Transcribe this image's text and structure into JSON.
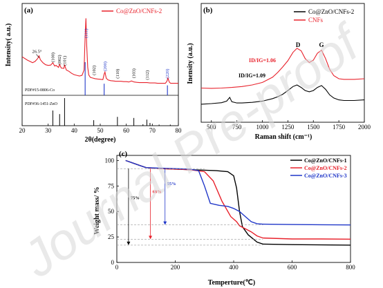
{
  "watermark": "Journal Pre-proof",
  "chart_data": [
    {
      "id": "a",
      "panel_label": "(a)",
      "type": "line",
      "xlabel": "2θ(degree)",
      "ylabel": "Intensity( a.u.)",
      "xlim": [
        20,
        80
      ],
      "xticks": [
        20,
        30,
        40,
        50,
        60,
        70,
        80
      ],
      "legend": {
        "position": "top-right"
      },
      "series": [
        {
          "name": "Co@ZnO/CNFs-2",
          "color": "#e8202a",
          "x": [
            20,
            22,
            24,
            25,
            26,
            26.5,
            27,
            28,
            29,
            30,
            31,
            31.8,
            32.5,
            33,
            34,
            34.4,
            35,
            36,
            36.3,
            37,
            38,
            39,
            40,
            41,
            42,
            43,
            43.8,
            44.2,
            44.5,
            44.8,
            45.2,
            45.6,
            46.2,
            47,
            48,
            49,
            50,
            51,
            51.5,
            51.8,
            52.3,
            53,
            54,
            55,
            56,
            57,
            58,
            59,
            60,
            61,
            62,
            63,
            64,
            65,
            66,
            67,
            68,
            69,
            70,
            71,
            72,
            73,
            74,
            75,
            75.6,
            76,
            76.5,
            77,
            78,
            79,
            80
          ],
          "y": [
            1.1,
            1.0,
            0.92,
            0.96,
            1.05,
            1.13,
            1.01,
            0.92,
            0.86,
            0.84,
            0.85,
            0.92,
            0.82,
            0.84,
            0.78,
            0.87,
            0.76,
            0.75,
            0.85,
            0.7,
            0.66,
            0.6,
            0.56,
            0.54,
            0.52,
            0.54,
            0.7,
            1.75,
            2.26,
            1.45,
            0.78,
            0.55,
            0.48,
            0.46,
            0.44,
            0.43,
            0.42,
            0.41,
            0.58,
            0.64,
            0.45,
            0.4,
            0.38,
            0.37,
            0.36,
            0.36,
            0.36,
            0.35,
            0.35,
            0.34,
            0.37,
            0.34,
            0.33,
            0.32,
            0.32,
            0.32,
            0.32,
            0.31,
            0.31,
            0.31,
            0.3,
            0.3,
            0.3,
            0.3,
            0.36,
            0.46,
            0.34,
            0.3,
            0.3,
            0.3,
            0.3
          ]
        }
      ],
      "annotations": [
        {
          "text": "26.5°",
          "x": 26.5,
          "color": "#000000"
        },
        {
          "text": "(100)",
          "x": 31.8,
          "color": "#000000"
        },
        {
          "text": "(002)",
          "x": 34.4,
          "color": "#000000"
        },
        {
          "text": "(101)",
          "x": 36.3,
          "color": "#000000"
        },
        {
          "text": "(111)",
          "x": 44.5,
          "color": "#1f36c8"
        },
        {
          "text": "(102)",
          "x": 47.6,
          "color": "#000000"
        },
        {
          "text": "(200)",
          "x": 51.8,
          "color": "#1f36c8"
        },
        {
          "text": "(110)",
          "x": 56.6,
          "color": "#000000"
        },
        {
          "text": "(103)",
          "x": 62.9,
          "color": "#000000"
        },
        {
          "text": "(112)",
          "x": 68.0,
          "color": "#000000"
        },
        {
          "text": "(220)",
          "x": 75.8,
          "color": "#1f36c8"
        }
      ],
      "reference_patterns": [
        {
          "label": "PDF#15-0806-Co",
          "color": "#1f36c8",
          "x": [
            44.2,
            51.5,
            75.8
          ],
          "intensity": [
            1.0,
            0.35,
            0.3
          ]
        },
        {
          "label": "PDF#36-1451-ZnO",
          "color": "#000000",
          "x": [
            31.8,
            34.4,
            36.3,
            47.5,
            56.6,
            62.9,
            66.4,
            67.9,
            69.1,
            72.6,
            76.9
          ],
          "intensity": [
            0.55,
            0.42,
            1.0,
            0.2,
            0.32,
            0.28,
            0.05,
            0.22,
            0.1,
            0.04,
            0.04
          ]
        }
      ]
    },
    {
      "id": "b",
      "panel_label": "(b)",
      "type": "line",
      "xlabel": "Raman shift (cm⁻¹)",
      "ylabel": "Inensity (a.u.)",
      "xlim": [
        400,
        2000
      ],
      "xticks": [
        500,
        750,
        1000,
        1250,
        1500,
        1750,
        2000
      ],
      "legend": {
        "position": "top-right"
      },
      "series": [
        {
          "name": "Co@ZnO/CNFs-2",
          "color": "#000000",
          "x": [
            400,
            500,
            600,
            650,
            680,
            700,
            750,
            800,
            900,
            1000,
            1100,
            1150,
            1200,
            1250,
            1300,
            1340,
            1380,
            1420,
            1460,
            1500,
            1540,
            1580,
            1620,
            1660,
            1700,
            1750,
            1800,
            1900,
            2000
          ],
          "y": [
            0.58,
            0.6,
            0.63,
            0.68,
            0.8,
            0.66,
            0.62,
            0.62,
            0.64,
            0.68,
            0.76,
            0.82,
            0.9,
            1.02,
            1.15,
            1.2,
            1.12,
            1.02,
            0.98,
            1.02,
            1.12,
            1.18,
            1.06,
            0.88,
            0.78,
            0.72,
            0.7,
            0.7,
            0.72
          ]
        },
        {
          "name": "CNFs",
          "color": "#e8202a",
          "x": [
            400,
            500,
            600,
            700,
            800,
            900,
            1000,
            1100,
            1150,
            1200,
            1250,
            1300,
            1340,
            1380,
            1420,
            1460,
            1500,
            1540,
            1580,
            1620,
            1660,
            1700,
            1750,
            1800,
            1900,
            2000
          ],
          "y": [
            1.1,
            1.09,
            1.1,
            1.12,
            1.15,
            1.2,
            1.28,
            1.45,
            1.6,
            1.78,
            1.98,
            2.25,
            2.38,
            2.3,
            2.05,
            1.92,
            2.0,
            2.22,
            2.32,
            2.05,
            1.7,
            1.5,
            1.4,
            1.38,
            1.38,
            1.4
          ]
        }
      ],
      "annotations": [
        {
          "text": "D",
          "x": 1350,
          "color": "#000000"
        },
        {
          "text": "G",
          "x": 1580,
          "color": "#000000"
        },
        {
          "text": "ID/IG=1.06",
          "color": "#e8202a"
        },
        {
          "text": "ID/IG=1.09",
          "color": "#000000"
        }
      ]
    },
    {
      "id": "c",
      "panel_label": "(c)",
      "type": "line",
      "xlabel": "Temperture(℃)",
      "ylabel": "Weight mass/ %",
      "xlim": [
        0,
        800
      ],
      "ylim": [
        0,
        105
      ],
      "xticks": [
        0,
        200,
        400,
        600,
        800
      ],
      "yticks": [
        0,
        25,
        50,
        75,
        100
      ],
      "legend": {
        "position": "top-right"
      },
      "series": [
        {
          "name": "Co@ZnO/CNFs-1",
          "color": "#000000",
          "x": [
            30,
            50,
            80,
            100,
            150,
            200,
            250,
            300,
            340,
            380,
            400,
            410,
            420,
            430,
            450,
            480,
            500,
            600,
            700,
            800
          ],
          "y": [
            100,
            98,
            95,
            93,
            92,
            91.5,
            91,
            90.5,
            90,
            89,
            85,
            73,
            50,
            35,
            27,
            20,
            18,
            17.5,
            17.2,
            17
          ],
          "mass_loss_label": "75%"
        },
        {
          "name": "Co@ZnO/CNFs-2",
          "color": "#e8202a",
          "x": [
            30,
            50,
            80,
            100,
            150,
            200,
            250,
            300,
            330,
            360,
            390,
            410,
            420,
            440,
            460,
            480,
            500,
            600,
            700,
            800
          ],
          "y": [
            100,
            98,
            95,
            93,
            92,
            91.5,
            91,
            89,
            80,
            60,
            45,
            40,
            36,
            33,
            30,
            26,
            24,
            23,
            23,
            22.8
          ],
          "mass_loss_label": "68%"
        },
        {
          "name": "Co@ZnO/CNFs-3",
          "color": "#1f36c8",
          "x": [
            30,
            50,
            80,
            100,
            150,
            200,
            250,
            280,
            300,
            320,
            350,
            380,
            400,
            420,
            440,
            460,
            480,
            500,
            600,
            700,
            800
          ],
          "y": [
            100,
            98,
            95,
            93,
            92.5,
            92,
            91.5,
            90,
            75,
            58,
            56,
            55,
            53,
            50,
            45,
            40,
            38,
            37.5,
            37.2,
            37,
            36.8
          ],
          "mass_loss_label": "55%"
        }
      ],
      "annotations": [
        {
          "text": "75%",
          "color": "#000000"
        },
        {
          "text": "68%",
          "color": "#e8202a"
        },
        {
          "text": "55%",
          "color": "#1f36c8"
        }
      ]
    }
  ]
}
